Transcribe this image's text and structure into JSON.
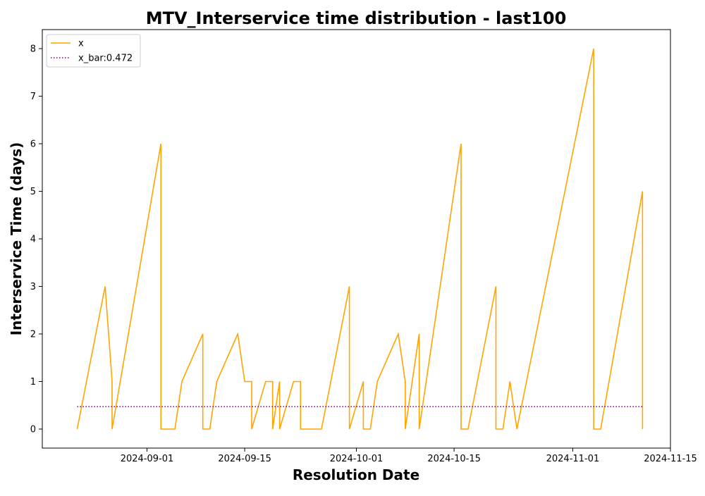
{
  "chart_data": {
    "type": "line",
    "title": "MTV_Interservice time distribution - last100",
    "xlabel": "Resolution Date",
    "ylabel": "Interservice Time (days)",
    "x_tick_labels": [
      "2024-09-01",
      "2024-09-15",
      "2024-10-01",
      "2024-10-15",
      "2024-11-01",
      "2024-11-15"
    ],
    "y_tick_labels": [
      "0",
      "1",
      "2",
      "3",
      "4",
      "5",
      "6",
      "7",
      "8"
    ],
    "ylim": [
      -0.4,
      8.4
    ],
    "xlim": [
      "2024-08-17",
      "2024-11-15"
    ],
    "legend_position": "upper-left",
    "grid": false,
    "colors": {
      "line": "#FFA500",
      "mean": "#800080",
      "axes": "#000000",
      "legend_border": "#cccccc"
    },
    "series": [
      {
        "name": "x",
        "style": "solid",
        "points": [
          [
            "2024-08-22",
            0
          ],
          [
            "2024-08-22",
            0
          ],
          [
            "2024-08-26",
            3
          ],
          [
            "2024-08-27",
            1
          ],
          [
            "2024-08-27",
            0
          ],
          [
            "2024-09-03",
            6
          ],
          [
            "2024-09-03",
            0
          ],
          [
            "2024-09-05",
            0
          ],
          [
            "2024-09-06",
            1
          ],
          [
            "2024-09-09",
            2
          ],
          [
            "2024-09-09",
            0
          ],
          [
            "2024-09-10",
            0
          ],
          [
            "2024-09-11",
            1
          ],
          [
            "2024-09-14",
            2
          ],
          [
            "2024-09-15",
            1
          ],
          [
            "2024-09-16",
            1
          ],
          [
            "2024-09-16",
            0
          ],
          [
            "2024-09-18",
            1
          ],
          [
            "2024-09-19",
            1
          ],
          [
            "2024-09-19",
            0
          ],
          [
            "2024-09-20",
            1
          ],
          [
            "2024-09-20",
            0
          ],
          [
            "2024-09-22",
            1
          ],
          [
            "2024-09-23",
            1
          ],
          [
            "2024-09-23",
            0
          ],
          [
            "2024-09-26",
            0
          ],
          [
            "2024-09-30",
            3
          ],
          [
            "2024-09-30",
            0
          ],
          [
            "2024-10-02",
            1
          ],
          [
            "2024-10-02",
            0
          ],
          [
            "2024-10-03",
            0
          ],
          [
            "2024-10-04",
            1
          ],
          [
            "2024-10-07",
            2
          ],
          [
            "2024-10-08",
            1
          ],
          [
            "2024-10-08",
            0
          ],
          [
            "2024-10-10",
            2
          ],
          [
            "2024-10-10",
            0
          ],
          [
            "2024-10-16",
            6
          ],
          [
            "2024-10-16",
            0
          ],
          [
            "2024-10-17",
            0
          ],
          [
            "2024-10-21",
            3
          ],
          [
            "2024-10-21",
            0
          ],
          [
            "2024-10-22",
            0
          ],
          [
            "2024-10-23",
            1
          ],
          [
            "2024-10-24",
            0
          ],
          [
            "2024-11-04",
            8
          ],
          [
            "2024-11-04",
            0
          ],
          [
            "2024-11-05",
            0
          ],
          [
            "2024-11-11",
            5
          ],
          [
            "2024-11-11",
            0
          ]
        ]
      },
      {
        "name": "x_bar:0.472",
        "style": "dotted",
        "points": [
          [
            "2024-08-22",
            0.472
          ],
          [
            "2024-11-11",
            0.472
          ]
        ]
      }
    ]
  }
}
